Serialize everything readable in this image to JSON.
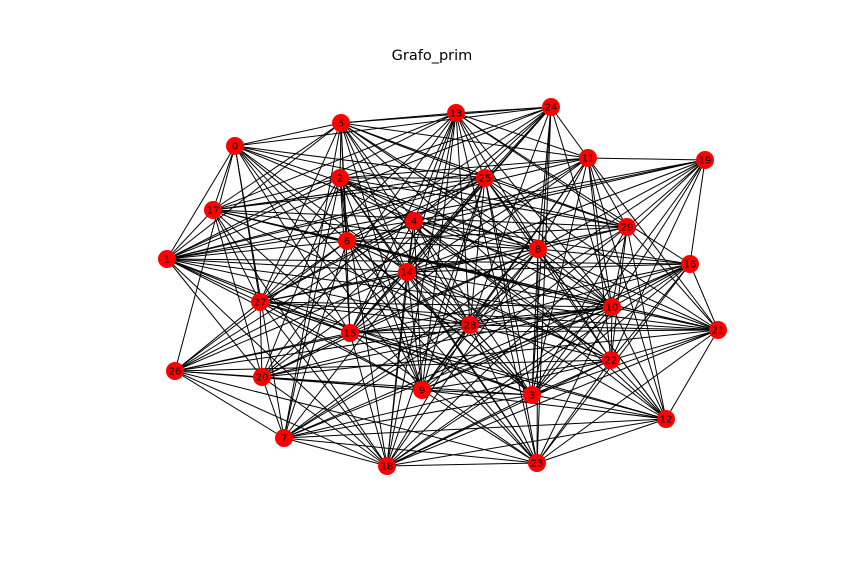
{
  "figure": {
    "title": "Grafo_prim"
  },
  "colors": {
    "node_fill": "#ff0000",
    "edge_stroke": "#000000",
    "background": "#ffffff"
  },
  "graph": {
    "nodes": [
      "0",
      "1",
      "2",
      "3",
      "4",
      "5",
      "6",
      "7",
      "8",
      "9",
      "10",
      "11",
      "12",
      "13",
      "14",
      "15",
      "16",
      "17",
      "18",
      "19",
      "20",
      "21",
      "22",
      "23",
      "24",
      "25",
      "26",
      "27",
      "28",
      "29"
    ],
    "edge_pattern": "dense; most node pairs are connected by straight black lines"
  }
}
